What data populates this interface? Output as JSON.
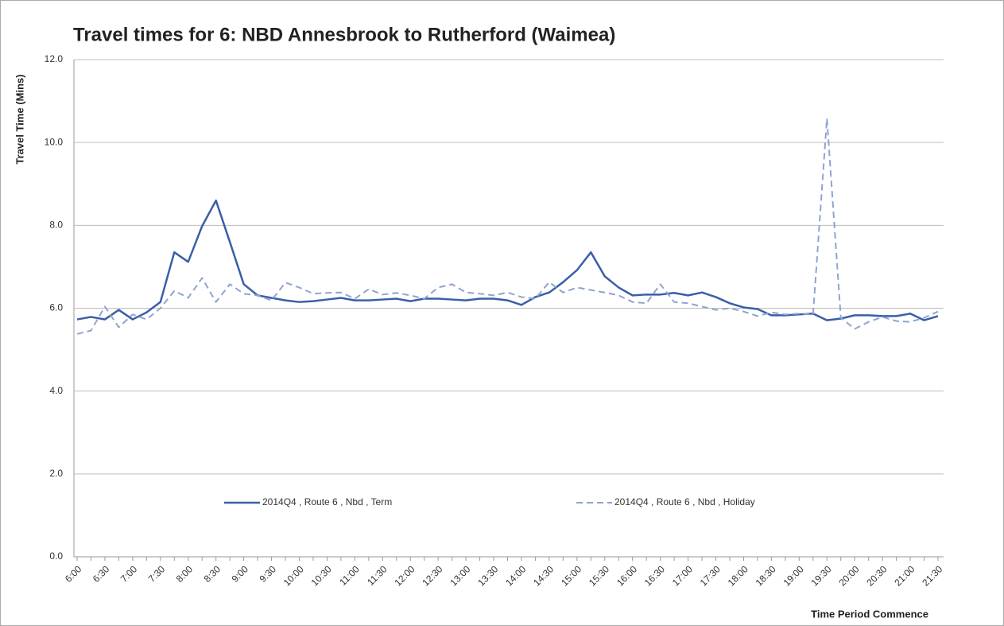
{
  "chart_data": {
    "type": "line",
    "title": "Travel times for 6: NBD Annesbrook to Rutherford (Waimea)",
    "y_label": "Travel Time (Mins)",
    "x_label": "Time Period Commence",
    "categories": [
      "6:00",
      null,
      "6:30",
      null,
      "7:00",
      null,
      "7:30",
      null,
      "8:00",
      null,
      "8:30",
      null,
      "9:00",
      null,
      "9:30",
      null,
      "10:00",
      null,
      "10:30",
      null,
      "11:00",
      null,
      "11:30",
      null,
      "12:00",
      null,
      "12:30",
      null,
      "13:00",
      null,
      "13:30",
      null,
      "14:00",
      null,
      "14:30",
      null,
      "15:00",
      null,
      "15:30",
      null,
      "16:00",
      null,
      "16:30",
      null,
      "17:00",
      null,
      "17:30",
      null,
      "18:00",
      null,
      "18:30",
      null,
      "19:00",
      null,
      "19:30",
      null,
      "20:00",
      null,
      "20:30",
      null,
      "21:00",
      null,
      "21:30"
    ],
    "series": [
      {
        "name": "2014Q4 , Route 6 , Nbd , Term",
        "color": "#3a5ea8",
        "dash": false,
        "values": [
          5.73,
          5.79,
          5.73,
          5.96,
          5.73,
          5.9,
          6.15,
          7.35,
          7.12,
          7.98,
          8.6,
          7.6,
          6.58,
          6.31,
          6.25,
          6.19,
          6.15,
          6.17,
          6.21,
          6.25,
          6.19,
          6.19,
          6.21,
          6.23,
          6.17,
          6.23,
          6.23,
          6.21,
          6.19,
          6.23,
          6.23,
          6.19,
          6.08,
          6.27,
          6.38,
          6.63,
          6.92,
          7.35,
          6.77,
          6.5,
          6.31,
          6.33,
          6.33,
          6.37,
          6.31,
          6.38,
          6.27,
          6.12,
          6.02,
          5.98,
          5.83,
          5.83,
          5.85,
          5.87,
          5.71,
          5.75,
          5.83,
          5.83,
          5.81,
          5.81,
          5.87,
          5.71,
          5.81
        ]
      },
      {
        "name": "2014Q4 , Route 6 , Nbd , Holiday",
        "color": "#8fa3d2",
        "dash": true,
        "values": [
          5.38,
          5.46,
          6.04,
          5.54,
          5.85,
          5.73,
          6.0,
          6.42,
          6.25,
          6.73,
          6.15,
          6.58,
          6.35,
          6.31,
          6.19,
          6.62,
          6.5,
          6.35,
          6.37,
          6.38,
          6.23,
          6.46,
          6.33,
          6.37,
          6.31,
          6.23,
          6.5,
          6.58,
          6.38,
          6.35,
          6.31,
          6.38,
          6.27,
          6.23,
          6.63,
          6.38,
          6.5,
          6.44,
          6.38,
          6.31,
          6.15,
          6.12,
          6.58,
          6.15,
          6.12,
          6.04,
          5.96,
          6.0,
          5.92,
          5.81,
          5.9,
          5.85,
          5.87,
          5.85,
          10.58,
          5.77,
          5.5,
          5.67,
          5.79,
          5.69,
          5.67,
          5.77,
          5.92
        ]
      }
    ],
    "ylim": [
      0,
      12
    ],
    "yticks": [
      {
        "value": 0,
        "label": "0.0"
      },
      {
        "value": 2,
        "label": "2.0"
      },
      {
        "value": 4,
        "label": "4.0"
      },
      {
        "value": 6,
        "label": "6.0"
      },
      {
        "value": 8,
        "label": "8.0"
      },
      {
        "value": 10,
        "label": "10.0"
      },
      {
        "value": 12,
        "label": "12.0"
      }
    ],
    "grid": true,
    "legend": "center"
  }
}
